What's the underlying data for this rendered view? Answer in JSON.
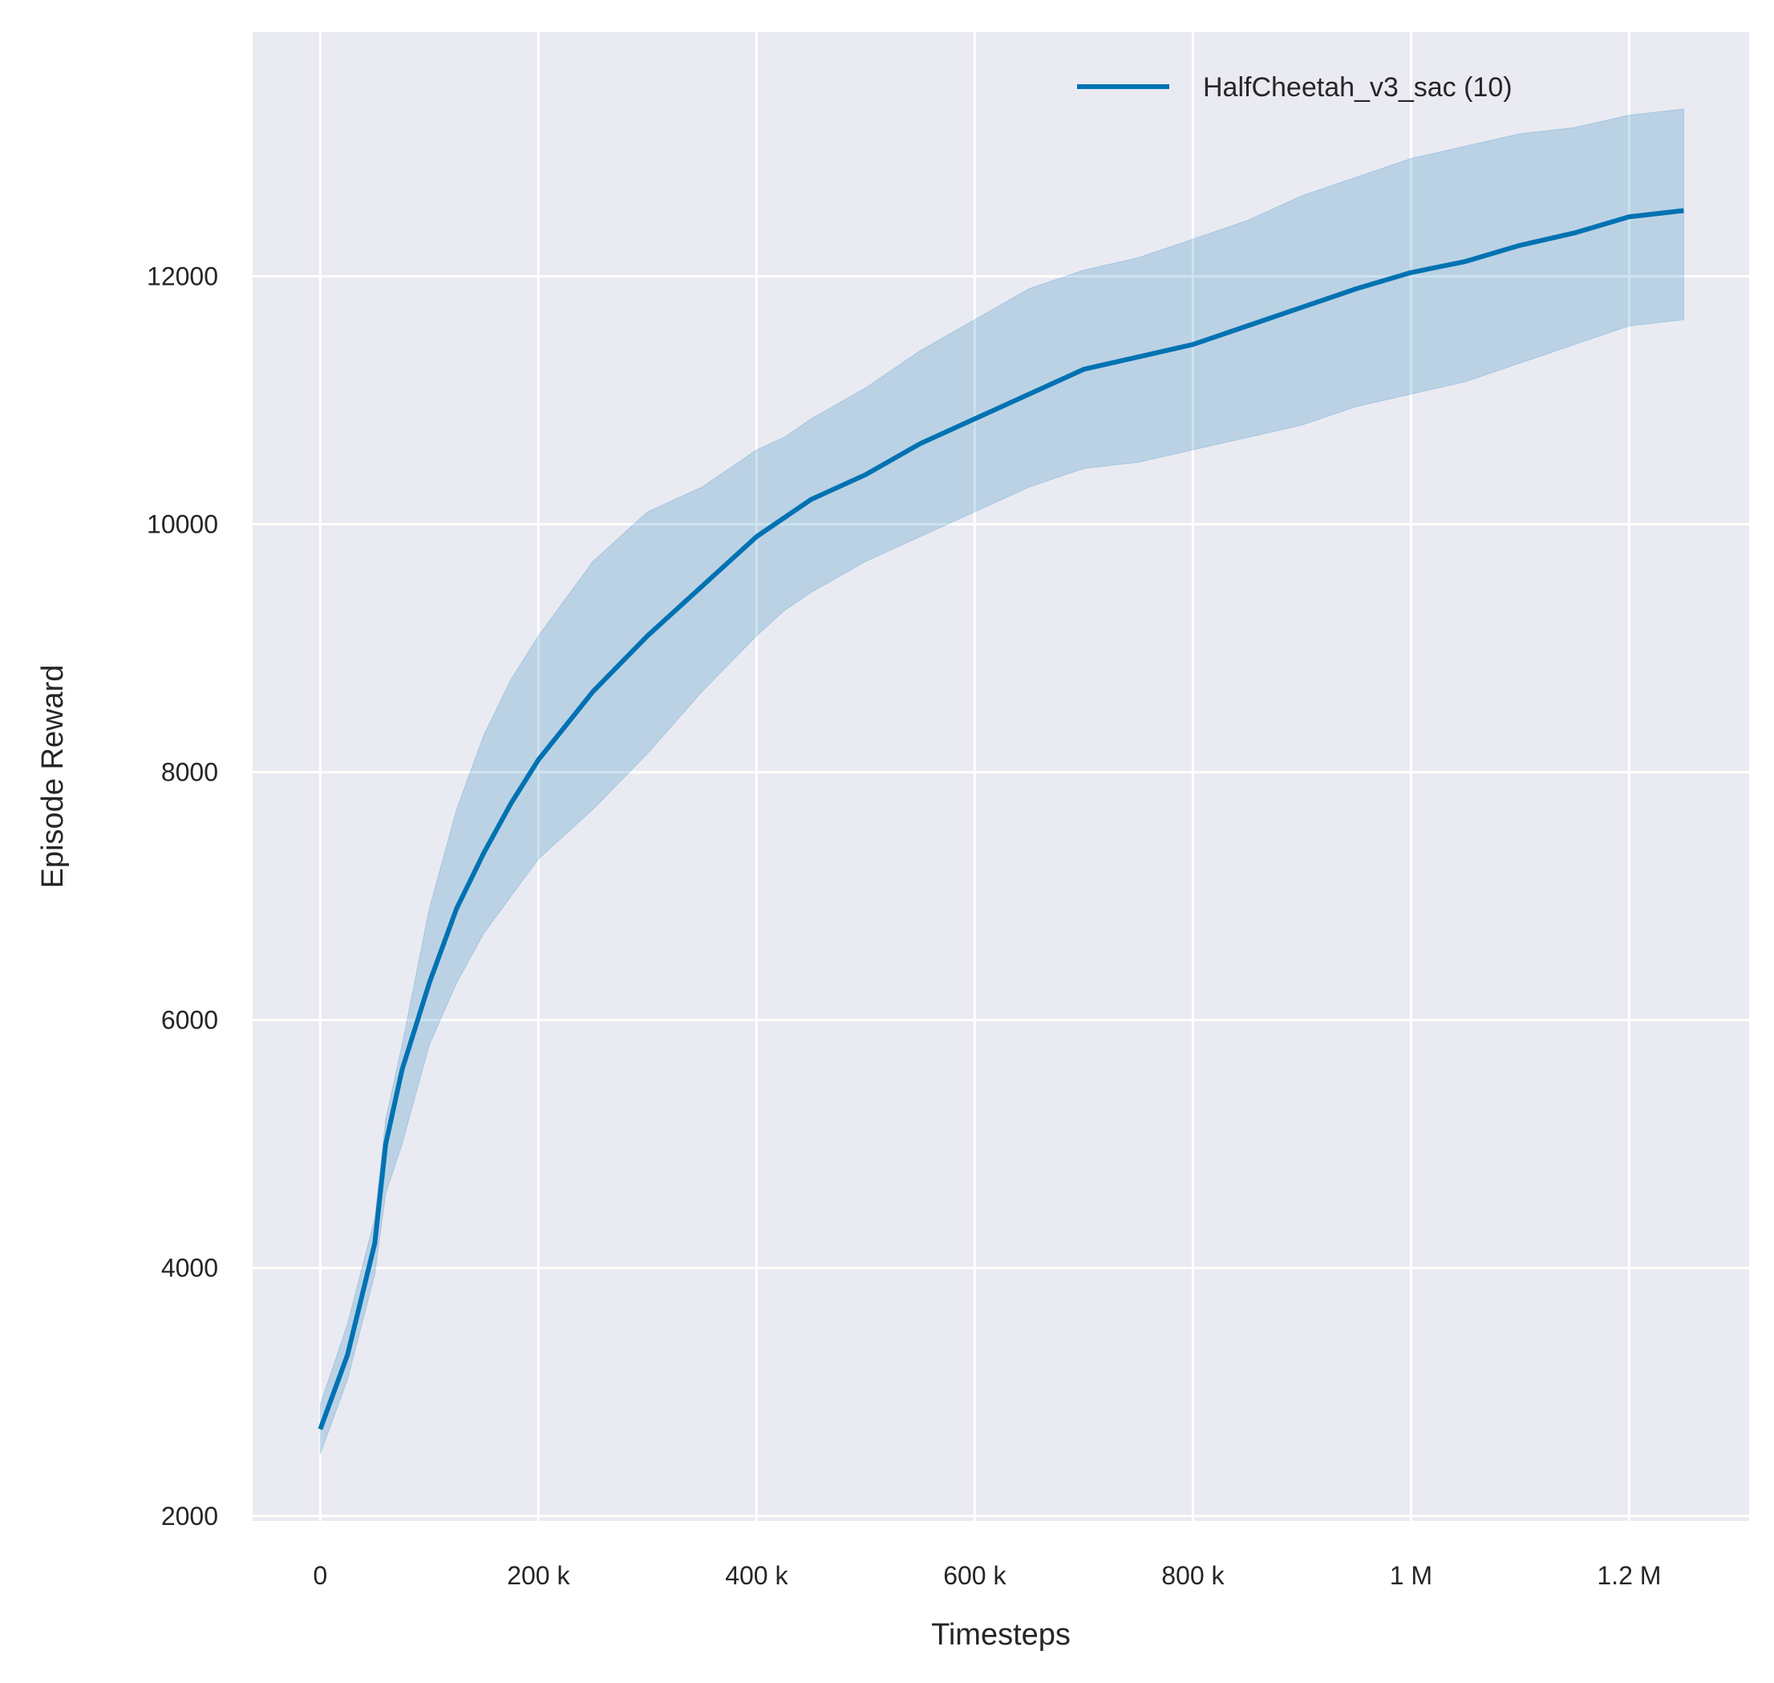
{
  "chart_data": {
    "type": "line",
    "title": "",
    "xlabel": "Timesteps",
    "ylabel": "Episode Reward",
    "xlim": [
      -62000,
      1310000
    ],
    "ylim": [
      1960,
      13970
    ],
    "grid": true,
    "legend_position": "top-right",
    "background_color": "#EAEAF2",
    "x_ticks": [
      0,
      200000,
      400000,
      600000,
      800000,
      1000000,
      1200000
    ],
    "x_tick_labels": [
      "0",
      "200 k",
      "400 k",
      "600 k",
      "800 k",
      "1 M",
      "1.2 M"
    ],
    "y_ticks": [
      2000,
      4000,
      6000,
      8000,
      10000,
      12000
    ],
    "y_tick_labels": [
      "2000",
      "4000",
      "6000",
      "8000",
      "10000",
      "12000"
    ],
    "series": [
      {
        "name": "HalfCheetah_v3_sac (10)",
        "color": "#0072B2",
        "x": [
          0,
          25000,
          50000,
          60000,
          75000,
          100000,
          125000,
          150000,
          175000,
          200000,
          250000,
          300000,
          350000,
          400000,
          425000,
          450000,
          500000,
          550000,
          600000,
          650000,
          700000,
          750000,
          800000,
          850000,
          900000,
          950000,
          1000000,
          1050000,
          1100000,
          1150000,
          1200000,
          1250000
        ],
        "y": [
          2700,
          3300,
          4200,
          5000,
          5600,
          6300,
          6900,
          7350,
          7750,
          8100,
          8650,
          9100,
          9500,
          9900,
          10050,
          10200,
          10400,
          10650,
          10850,
          11050,
          11250,
          11350,
          11450,
          11600,
          11750,
          11900,
          12030,
          12120,
          12250,
          12350,
          12480,
          12530
        ],
        "upper": [
          2900,
          3550,
          4400,
          5200,
          5800,
          6900,
          7700,
          8300,
          8750,
          9100,
          9700,
          10100,
          10300,
          10600,
          10700,
          10850,
          11100,
          11400,
          11650,
          11900,
          12050,
          12150,
          12300,
          12450,
          12650,
          12800,
          12950,
          13050,
          13150,
          13200,
          13300,
          13350
        ],
        "lower": [
          2500,
          3100,
          3950,
          4600,
          5000,
          5800,
          6300,
          6700,
          7000,
          7300,
          7700,
          8150,
          8650,
          9100,
          9300,
          9450,
          9700,
          9900,
          10100,
          10300,
          10450,
          10500,
          10600,
          10700,
          10800,
          10950,
          11050,
          11150,
          11300,
          11450,
          11600,
          11650
        ]
      }
    ]
  }
}
